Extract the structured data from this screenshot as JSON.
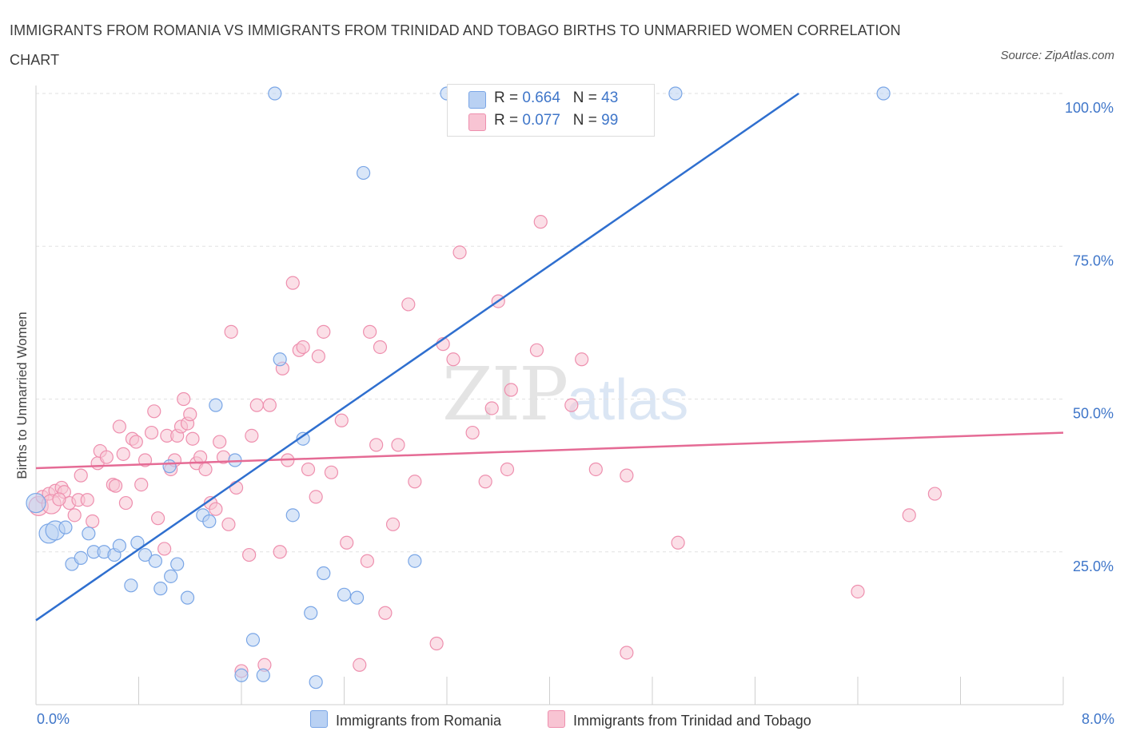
{
  "header": {
    "title": "IMMIGRANTS FROM ROMANIA VS IMMIGRANTS FROM TRINIDAD AND TOBAGO BIRTHS TO UNMARRIED WOMEN CORRELATION CHART",
    "source": "Source: ZipAtlas.com"
  },
  "legend": {
    "romania": {
      "r_label": "R =",
      "r_value": "0.664",
      "n_label": "N =",
      "n_value": "43"
    },
    "trinidad": {
      "r_label": "R =",
      "r_value": "0.077",
      "n_label": "N =",
      "n_value": "99"
    }
  },
  "bottom_legend": {
    "romania": "Immigrants from Romania",
    "trinidad": "Immigrants from Trinidad and Tobago"
  },
  "watermark": {
    "zip": "ZIP",
    "atlas": "atlas"
  },
  "colors": {
    "romania_fill": "#b9d1f3",
    "romania_stroke": "#7aa6e6",
    "romania_line": "#2f6fcf",
    "trinidad_fill": "#f8c4d3",
    "trinidad_stroke": "#ee8fae",
    "trinidad_line": "#e56b95",
    "tick_text": "#3f76c9"
  },
  "chart_data": {
    "type": "scatter",
    "title": "IMMIGRANTS FROM ROMANIA VS IMMIGRANTS FROM TRINIDAD AND TOBAGO BIRTHS TO UNMARRIED WOMEN CORRELATION CHART",
    "xlabel": "",
    "ylabel": "Births to Unmarried Women",
    "xlim": [
      0,
      8
    ],
    "ylim": [
      0,
      100
    ],
    "x_ticks": [
      "0.0%",
      "8.0%"
    ],
    "y_ticks": [
      {
        "value": 25,
        "label": "25.0%"
      },
      {
        "value": 50,
        "label": "50.0%"
      },
      {
        "value": 75,
        "label": "75.0%"
      },
      {
        "value": 100,
        "label": "100.0%"
      }
    ],
    "grid": "horizontal dashed",
    "series": [
      {
        "name": "Immigrants from Romania",
        "R": 0.664,
        "N": 43,
        "trend": {
          "x": [
            0.0,
            5.94
          ],
          "y": [
            13.8,
            100
          ]
        },
        "points": [
          [
            0.0,
            33
          ],
          [
            0.1,
            28
          ],
          [
            0.15,
            28.5
          ],
          [
            0.23,
            29
          ],
          [
            0.28,
            23
          ],
          [
            0.35,
            24
          ],
          [
            0.41,
            28
          ],
          [
            0.45,
            25
          ],
          [
            0.53,
            25
          ],
          [
            0.61,
            24.5
          ],
          [
            0.65,
            26
          ],
          [
            0.74,
            19.5
          ],
          [
            0.79,
            26.5
          ],
          [
            0.85,
            24.5
          ],
          [
            0.93,
            23.5
          ],
          [
            0.97,
            19
          ],
          [
            1.05,
            21
          ],
          [
            1.1,
            23
          ],
          [
            1.18,
            17.5
          ],
          [
            1.3,
            31
          ],
          [
            1.35,
            30
          ],
          [
            1.4,
            49
          ],
          [
            1.55,
            40
          ],
          [
            1.6,
            4.8
          ],
          [
            1.69,
            10.6
          ],
          [
            1.77,
            4.8
          ],
          [
            1.86,
            100
          ],
          [
            1.9,
            56.5
          ],
          [
            2.0,
            31
          ],
          [
            2.08,
            43.5
          ],
          [
            2.14,
            15
          ],
          [
            2.18,
            3.7
          ],
          [
            2.24,
            21.5
          ],
          [
            2.4,
            18
          ],
          [
            2.5,
            17.5
          ],
          [
            2.55,
            87
          ],
          [
            2.95,
            23.5
          ],
          [
            3.2,
            100
          ],
          [
            3.33,
            100
          ],
          [
            4.3,
            100
          ],
          [
            4.98,
            100
          ],
          [
            6.6,
            100
          ],
          [
            1.04,
            39
          ]
        ]
      },
      {
        "name": "Immigrants from Trinidad and Tobago",
        "R": 0.077,
        "N": 99,
        "trend": {
          "x": [
            0.0,
            8.0
          ],
          "y": [
            38.7,
            44.5
          ]
        },
        "points": [
          [
            0.02,
            32.5
          ],
          [
            0.05,
            34
          ],
          [
            0.1,
            34.5
          ],
          [
            0.15,
            35
          ],
          [
            0.2,
            35.5
          ],
          [
            0.22,
            34.8
          ],
          [
            0.26,
            33
          ],
          [
            0.3,
            31
          ],
          [
            0.33,
            33.5
          ],
          [
            0.35,
            37.5
          ],
          [
            0.4,
            33.5
          ],
          [
            0.44,
            30
          ],
          [
            0.48,
            39.5
          ],
          [
            0.5,
            41.5
          ],
          [
            0.55,
            40.5
          ],
          [
            0.6,
            36
          ],
          [
            0.62,
            35.8
          ],
          [
            0.65,
            45.5
          ],
          [
            0.68,
            41
          ],
          [
            0.7,
            33
          ],
          [
            0.75,
            43.5
          ],
          [
            0.78,
            43
          ],
          [
            0.82,
            36
          ],
          [
            0.85,
            40
          ],
          [
            0.9,
            44.5
          ],
          [
            0.92,
            48
          ],
          [
            0.95,
            30.5
          ],
          [
            1.0,
            25.5
          ],
          [
            1.02,
            44
          ],
          [
            1.05,
            38.5
          ],
          [
            1.08,
            40
          ],
          [
            1.1,
            44
          ],
          [
            1.13,
            45.5
          ],
          [
            1.15,
            50
          ],
          [
            1.18,
            46
          ],
          [
            1.2,
            47.5
          ],
          [
            1.22,
            43.5
          ],
          [
            1.25,
            39.5
          ],
          [
            1.28,
            40.5
          ],
          [
            1.32,
            38.5
          ],
          [
            1.36,
            33
          ],
          [
            1.4,
            32
          ],
          [
            1.43,
            43
          ],
          [
            1.46,
            40.5
          ],
          [
            1.5,
            29.5
          ],
          [
            1.52,
            61
          ],
          [
            1.56,
            35.5
          ],
          [
            1.6,
            5.5
          ],
          [
            1.66,
            24.5
          ],
          [
            1.68,
            44
          ],
          [
            1.72,
            49
          ],
          [
            1.78,
            6.5
          ],
          [
            1.82,
            49
          ],
          [
            1.9,
            25
          ],
          [
            1.92,
            55
          ],
          [
            1.96,
            40
          ],
          [
            2.0,
            69
          ],
          [
            2.05,
            58
          ],
          [
            2.08,
            58.5
          ],
          [
            2.12,
            38.5
          ],
          [
            2.18,
            34
          ],
          [
            2.24,
            61
          ],
          [
            2.3,
            38
          ],
          [
            2.38,
            46.5
          ],
          [
            2.42,
            26.5
          ],
          [
            2.52,
            6.5
          ],
          [
            2.58,
            23.5
          ],
          [
            2.6,
            61
          ],
          [
            2.65,
            42.5
          ],
          [
            2.68,
            58.5
          ],
          [
            2.72,
            15
          ],
          [
            2.78,
            29.5
          ],
          [
            2.82,
            42.5
          ],
          [
            2.9,
            65.5
          ],
          [
            2.95,
            36.5
          ],
          [
            3.12,
            10
          ],
          [
            3.17,
            59
          ],
          [
            3.25,
            56.5
          ],
          [
            3.3,
            74
          ],
          [
            3.4,
            44.5
          ],
          [
            3.5,
            36.5
          ],
          [
            3.55,
            48.5
          ],
          [
            3.6,
            66
          ],
          [
            3.67,
            38.5
          ],
          [
            3.7,
            51.5
          ],
          [
            3.9,
            58
          ],
          [
            3.93,
            79
          ],
          [
            4.17,
            49
          ],
          [
            4.25,
            56.5
          ],
          [
            4.36,
            38.5
          ],
          [
            4.6,
            8.5
          ],
          [
            4.6,
            37.5
          ],
          [
            5.0,
            26.5
          ],
          [
            6.4,
            18.5
          ],
          [
            6.8,
            31
          ],
          [
            7.0,
            34.5
          ],
          [
            0.12,
            32.8
          ],
          [
            0.18,
            33.6
          ],
          [
            2.2,
            57
          ]
        ]
      }
    ]
  }
}
